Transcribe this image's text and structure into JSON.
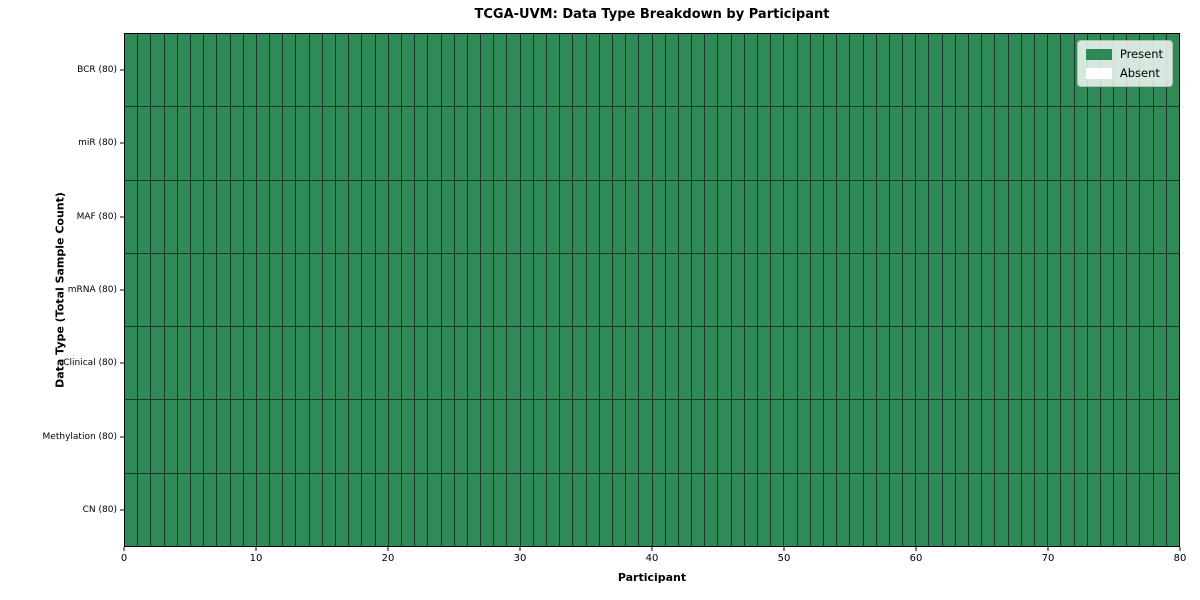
{
  "title": "TCGA-UVM: Data Type Breakdown by Participant",
  "xlabel": "Participant",
  "ylabel": "Data Type (Total Sample Count)",
  "legend": {
    "present_label": "Present",
    "absent_label": "Absent",
    "position": "upper right"
  },
  "colors": {
    "present": "#2e8b57",
    "absent": "#ffffff",
    "cell_edge": "#1e3528",
    "spine": "#000000",
    "legend_border": "#b8bcb8"
  },
  "chart_data": {
    "type": "heatmap",
    "title": "TCGA-UVM: Data Type Breakdown by Participant",
    "xlabel": "Participant",
    "ylabel": "Data Type (Total Sample Count)",
    "categories_y": [
      "BCR (80)",
      "miR (80)",
      "MAF (80)",
      "mRNA (80)",
      "Clinical (80)",
      "Methylation (80)",
      "CN (80)"
    ],
    "n_rows": 7,
    "n_cols": 80,
    "x_range": [
      0,
      80
    ],
    "x_ticks": [
      0,
      10,
      20,
      30,
      40,
      50,
      60,
      70,
      80
    ],
    "value_legend": {
      "1": "Present",
      "0": "Absent"
    },
    "matrix_fill": 1,
    "matrix_note": "all 7 data types are Present for all 80 participants (every cell = 1)",
    "grid": "per-cell dark edges",
    "legend_position": "upper right"
  }
}
